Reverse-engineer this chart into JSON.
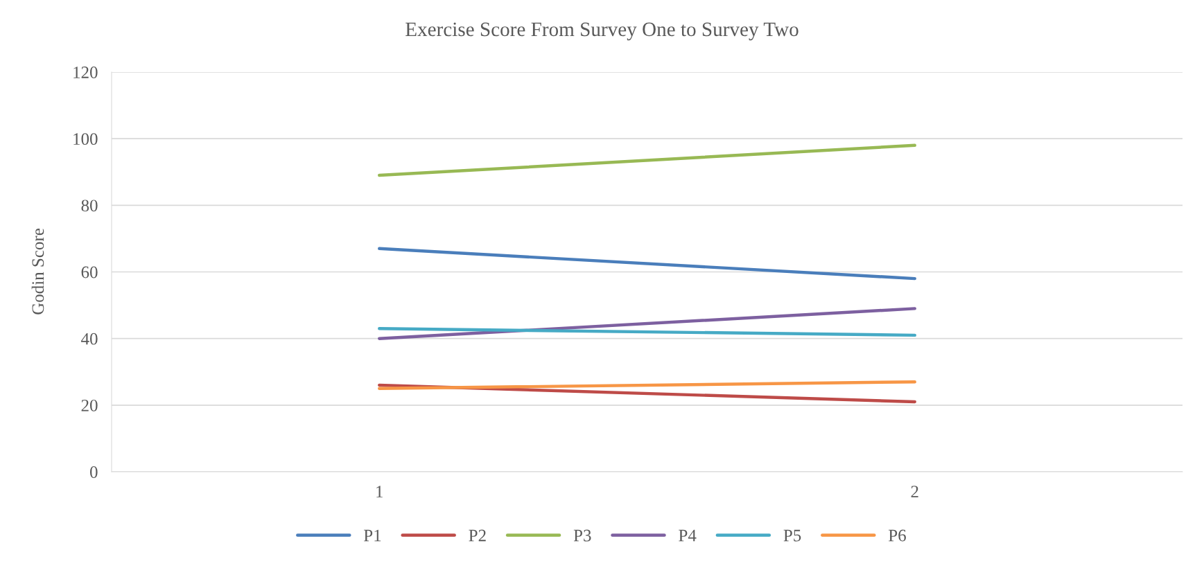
{
  "chart_data": {
    "type": "line",
    "title": "Exercise Score From Survey One to Survey Two",
    "ylabel": "Godin Score",
    "categories": [
      "1",
      "2"
    ],
    "series": [
      {
        "name": "P1",
        "color": "#4a7ebb",
        "values": [
          67,
          58
        ]
      },
      {
        "name": "P2",
        "color": "#be4b48",
        "values": [
          26,
          21
        ]
      },
      {
        "name": "P3",
        "color": "#98b954",
        "values": [
          89,
          98
        ]
      },
      {
        "name": "P4",
        "color": "#7d60a0",
        "values": [
          40,
          49
        ]
      },
      {
        "name": "P5",
        "color": "#46aac5",
        "values": [
          43,
          41
        ]
      },
      {
        "name": "P6",
        "color": "#f79646",
        "values": [
          25,
          27
        ]
      }
    ],
    "ylim": [
      0,
      120
    ],
    "yticks": [
      0,
      20,
      40,
      60,
      80,
      100,
      120
    ],
    "grid": "y",
    "legend": "bottom",
    "marker": "none",
    "line_style": "solid"
  }
}
